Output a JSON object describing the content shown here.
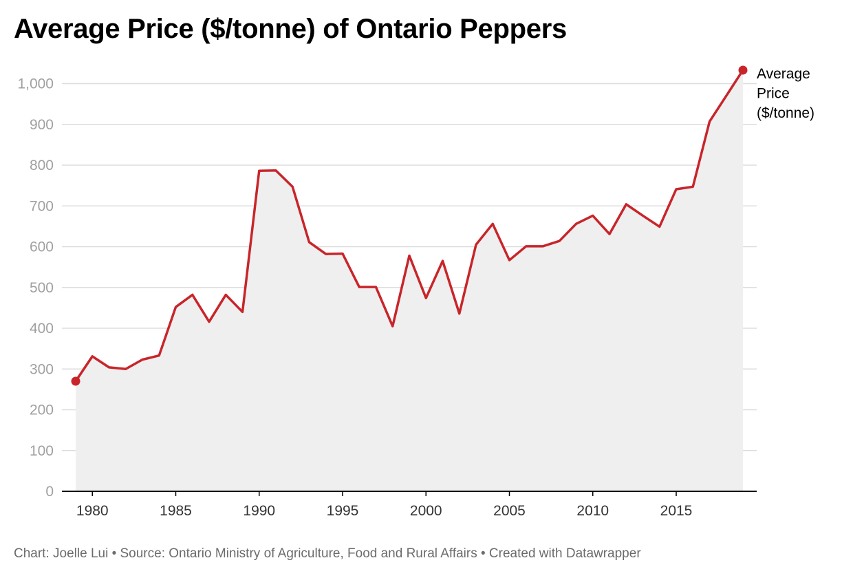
{
  "title": "Average Price ($/tonne) of Ontario Peppers",
  "footer": {
    "text": "Chart: Joelle Lui • Source: Ontario Ministry of Agriculture, Food and Rural Affairs • Created with Datawrapper"
  },
  "colors": {
    "line": "#c8252a",
    "area": "#efefef",
    "grid": "#dddddd",
    "tick_label": "#a0a0a0",
    "x_tick_label": "#333333",
    "axis": "#000000"
  },
  "chart_data": {
    "type": "area",
    "title": "Average Price ($/tonne) of Ontario Peppers",
    "xlabel": "",
    "ylabel": "",
    "xlim": [
      1979,
      2019
    ],
    "ylim": [
      0,
      1000
    ],
    "x_ticks": [
      1980,
      1985,
      1990,
      1995,
      2000,
      2005,
      2010,
      2015
    ],
    "y_ticks": [
      0,
      100,
      200,
      300,
      400,
      500,
      600,
      700,
      800,
      900,
      1000
    ],
    "y_tick_labels": [
      "0",
      "100",
      "200",
      "300",
      "400",
      "500",
      "600",
      "700",
      "800",
      "900",
      "1,000"
    ],
    "grid": true,
    "legend": "direct label at end of line",
    "series": [
      {
        "name": "Average Price ($/tonne)",
        "name_lines": [
          "Average",
          "Price",
          "($/tonne)"
        ],
        "x": [
          1979,
          1980,
          1981,
          1982,
          1983,
          1984,
          1985,
          1986,
          1987,
          1988,
          1989,
          1990,
          1991,
          1992,
          1993,
          1994,
          1995,
          1996,
          1997,
          1998,
          1999,
          2000,
          2001,
          2002,
          2003,
          2004,
          2005,
          2006,
          2007,
          2008,
          2009,
          2010,
          2011,
          2012,
          2013,
          2014,
          2015,
          2016,
          2017,
          2018,
          2019
        ],
        "y": [
          270,
          331,
          304,
          300,
          323,
          333,
          452,
          482,
          416,
          482,
          440,
          786,
          787,
          747,
          611,
          582,
          583,
          501,
          501,
          405,
          578,
          474,
          565,
          436,
          605,
          656,
          567,
          601,
          601,
          614,
          656,
          676,
          631,
          704,
          676,
          649,
          741,
          747,
          907,
          970,
          1033
        ]
      }
    ]
  }
}
